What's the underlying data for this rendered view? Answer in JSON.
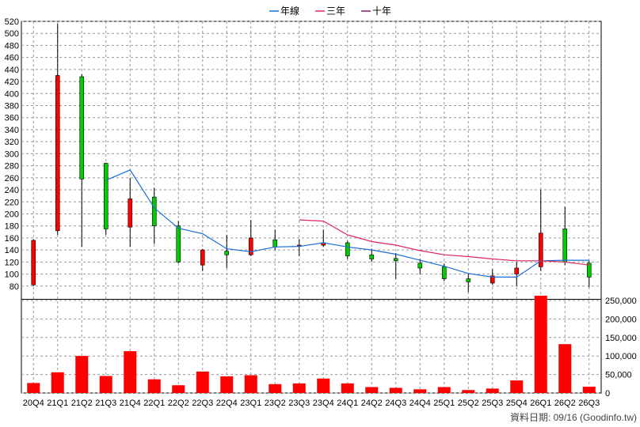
{
  "legend": [
    {
      "label": "年線",
      "color": "#1a6fd6"
    },
    {
      "label": "三年",
      "color": "#e0245e"
    },
    {
      "label": "十年",
      "color": "#8b1a6b"
    }
  ],
  "footer": "資料日期: 09/16  (Goodinfo.tw)",
  "colors": {
    "up": "#ff0000",
    "down": "#00cc00",
    "volume": "#ff0000",
    "grid": "#999999"
  },
  "chart_data": {
    "type": "candlestick",
    "categories": [
      "20Q4",
      "21Q1",
      "21Q2",
      "21Q3",
      "21Q4",
      "22Q1",
      "22Q2",
      "22Q3",
      "22Q4",
      "23Q1",
      "23Q2",
      "23Q3",
      "23Q4",
      "24Q1",
      "24Q2",
      "24Q3",
      "24Q4",
      "25Q1",
      "25Q2",
      "25Q3",
      "25Q4",
      "26Q1",
      "26Q2",
      "26Q3"
    ],
    "price_axis": {
      "min": 60,
      "max": 520,
      "ticks": [
        80,
        100,
        120,
        140,
        160,
        180,
        200,
        220,
        240,
        260,
        280,
        300,
        320,
        340,
        360,
        380,
        400,
        420,
        440,
        460,
        480,
        500,
        520
      ]
    },
    "volume_axis": {
      "min": 0,
      "max": 250000,
      "ticks": [
        0,
        50000,
        100000,
        150000,
        200000,
        250000
      ],
      "tick_labels": [
        "0",
        "50,000",
        "100,000",
        "150,000",
        "200,000",
        "250,000"
      ]
    },
    "ohlc": [
      {
        "o": 82,
        "h": 158,
        "l": 80,
        "c": 156
      },
      {
        "o": 172,
        "h": 516,
        "l": 165,
        "c": 430
      },
      {
        "o": 428,
        "h": 432,
        "l": 145,
        "c": 258
      },
      {
        "o": 284,
        "h": 285,
        "l": 165,
        "c": 175
      },
      {
        "o": 178,
        "h": 260,
        "l": 145,
        "c": 225
      },
      {
        "o": 228,
        "h": 243,
        "l": 150,
        "c": 180
      },
      {
        "o": 180,
        "h": 188,
        "l": 118,
        "c": 120
      },
      {
        "o": 115,
        "h": 142,
        "l": 105,
        "c": 140
      },
      {
        "o": 138,
        "h": 165,
        "l": 110,
        "c": 132
      },
      {
        "o": 132,
        "h": 190,
        "l": 130,
        "c": 160
      },
      {
        "o": 157,
        "h": 174,
        "l": 140,
        "c": 145
      },
      {
        "o": 146,
        "h": 158,
        "l": 130,
        "c": 148
      },
      {
        "o": 148,
        "h": 174,
        "l": 145,
        "c": 152
      },
      {
        "o": 152,
        "h": 155,
        "l": 125,
        "c": 130
      },
      {
        "o": 132,
        "h": 142,
        "l": 120,
        "c": 125
      },
      {
        "o": 126,
        "h": 135,
        "l": 92,
        "c": 122
      },
      {
        "o": 118,
        "h": 125,
        "l": 100,
        "c": 110
      },
      {
        "o": 112,
        "h": 117,
        "l": 88,
        "c": 92
      },
      {
        "o": 92,
        "h": 100,
        "l": 70,
        "c": 87
      },
      {
        "o": 85,
        "h": 108,
        "l": 82,
        "c": 97
      },
      {
        "o": 100,
        "h": 120,
        "l": 80,
        "c": 110
      },
      {
        "o": 112,
        "h": 240,
        "l": 105,
        "c": 168
      },
      {
        "o": 175,
        "h": 212,
        "l": 115,
        "c": 120
      },
      {
        "o": 118,
        "h": 122,
        "l": 78,
        "c": 95
      }
    ],
    "volume": [
      27000,
      56000,
      100000,
      46000,
      113000,
      37000,
      21000,
      58000,
      45000,
      48000,
      24000,
      26000,
      39000,
      26000,
      16000,
      14000,
      10000,
      16000,
      8000,
      12000,
      34000,
      263000,
      132000,
      17000
    ],
    "series": [
      {
        "name": "年線",
        "values": [
          null,
          null,
          null,
          256,
          273,
          210,
          176,
          167,
          142,
          137,
          145,
          146,
          152,
          145,
          140,
          133,
          123,
          113,
          101,
          95,
          95,
          122,
          123,
          123
        ]
      },
      {
        "name": "三年",
        "values": [
          null,
          null,
          null,
          null,
          null,
          null,
          null,
          null,
          null,
          null,
          null,
          190,
          188,
          165,
          154,
          148,
          139,
          132,
          129,
          125,
          122,
          122,
          120,
          115
        ]
      },
      {
        "name": "十年",
        "values": [
          null,
          null,
          null,
          null,
          null,
          null,
          null,
          null,
          null,
          null,
          null,
          null,
          null,
          null,
          null,
          null,
          null,
          null,
          null,
          null,
          null,
          null,
          null,
          null
        ]
      }
    ]
  }
}
